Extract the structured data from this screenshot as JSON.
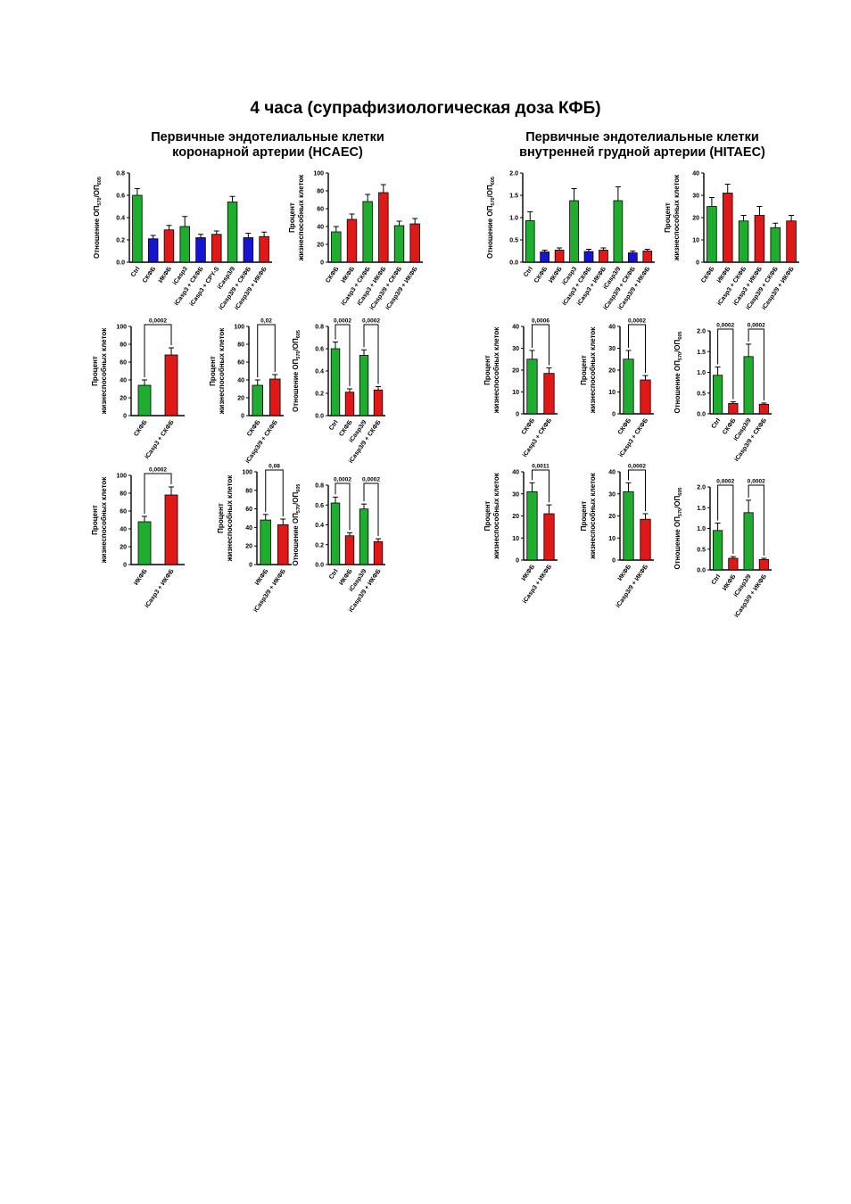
{
  "page": {
    "title": "4 часа (супрафизиологическая доза КФБ)",
    "left_panel": {
      "line1": "Первичные эндотелиальные клетки",
      "line2": "коронарной артерии (HCAEC)"
    },
    "right_panel": {
      "line1": "Первичные эндотелиальные клетки",
      "line2": "внутренней грудной артерии (HITAEC)"
    }
  },
  "colors": {
    "green": "#1fad2f",
    "blue": "#1414d2",
    "red": "#e01818"
  },
  "chart_data": [
    {
      "id": "hcaec-ratio-all",
      "type": "bar",
      "ylabel": "Отношение ОП570/ОП605",
      "ylabel_main": "Отношение ОП",
      "ylabel_sub1": "570",
      "ylabel_mid": "/ОП",
      "ylabel_sub2": "605",
      "ylim": [
        0,
        0.8
      ],
      "yticks": [
        "0.0",
        "0.2",
        "0.4",
        "0.6",
        "0.8"
      ],
      "categories": [
        "Ctrl",
        "СКФБ",
        "ИКФБ",
        "iCasp3",
        "iCasp3 + СКФБ",
        "iCasp3 + CPY-S",
        "iCasp3/9",
        "iCasp3/9 + СКФБ",
        "iCasp3/9 + ИКФБ"
      ],
      "values": [
        0.6,
        0.21,
        0.29,
        0.32,
        0.22,
        0.25,
        0.54,
        0.22,
        0.23
      ],
      "errors": [
        0.06,
        0.03,
        0.04,
        0.09,
        0.03,
        0.03,
        0.05,
        0.04,
        0.04
      ],
      "colors": [
        "green",
        "blue",
        "red",
        "green",
        "blue",
        "red",
        "green",
        "blue",
        "red"
      ],
      "brackets": []
    },
    {
      "id": "hcaec-viable-all",
      "type": "bar",
      "ylabel_line1": "Процент",
      "ylabel_line2": "жизнеспособных клеток",
      "ylim": [
        0,
        100
      ],
      "yticks": [
        "0",
        "20",
        "40",
        "60",
        "80",
        "100"
      ],
      "categories": [
        "СКФБ",
        "ИКФБ",
        "iCasp3 + СКФБ",
        "iCasp3 + ИКФБ",
        "iCasp3/9 + СКФБ",
        "iCasp3/9 + ИКФБ"
      ],
      "values": [
        34,
        48,
        68,
        78,
        41,
        43
      ],
      "errors": [
        6,
        6,
        8,
        9,
        5,
        6
      ],
      "colors": [
        "green",
        "red",
        "green",
        "red",
        "green",
        "red"
      ],
      "brackets": []
    },
    {
      "id": "hitaec-ratio-all",
      "type": "bar",
      "ylabel": "Отношение ОП570/ОП605",
      "ylabel_main": "Отношение ОП",
      "ylabel_sub1": "570",
      "ylabel_mid": "/ОП",
      "ylabel_sub2": "605",
      "ylim": [
        0,
        2.0
      ],
      "yticks": [
        "0.0",
        "0.5",
        "1.0",
        "1.5",
        "2.0"
      ],
      "categories": [
        "Ctrl",
        "СКФБ",
        "ИКФБ",
        "iCasp3",
        "iCasp3 + СКФБ",
        "iCasp3 + ИКФБ",
        "iCasp3/9",
        "iCasp3/9 + СКФБ",
        "iCasp3/9 + ИКФБ"
      ],
      "values": [
        0.93,
        0.23,
        0.27,
        1.38,
        0.24,
        0.27,
        1.38,
        0.21,
        0.25
      ],
      "errors": [
        0.2,
        0.04,
        0.05,
        0.27,
        0.05,
        0.05,
        0.31,
        0.04,
        0.04
      ],
      "colors": [
        "green",
        "blue",
        "red",
        "green",
        "blue",
        "red",
        "green",
        "blue",
        "red"
      ],
      "brackets": []
    },
    {
      "id": "hitaec-viable-all",
      "type": "bar",
      "ylabel_line1": "Процент",
      "ylabel_line2": "жизнеспособных клеток",
      "ylim": [
        0,
        40
      ],
      "yticks": [
        "0",
        "10",
        "20",
        "30",
        "40"
      ],
      "categories": [
        "СКФБ",
        "ИКФБ",
        "iCasp3 + СКФБ",
        "iCasp3 + ИКФБ",
        "iCasp3/9 + СКФБ",
        "iCasp3/9 + ИКФБ"
      ],
      "values": [
        25,
        31,
        18.5,
        21,
        15.5,
        18.5
      ],
      "errors": [
        4,
        4,
        2.5,
        4,
        2,
        2.5
      ],
      "colors": [
        "green",
        "red",
        "green",
        "red",
        "green",
        "red"
      ],
      "brackets": []
    },
    {
      "id": "hcaec-viable-sk",
      "type": "bar",
      "ylabel_line1": "Процент",
      "ylabel_line2": "жизнеспособных клеток",
      "ylim": [
        0,
        100
      ],
      "yticks": [
        "0",
        "20",
        "40",
        "60",
        "80",
        "100"
      ],
      "categories": [
        "СКФБ",
        "iCasp3 + СКФБ"
      ],
      "values": [
        34,
        68
      ],
      "errors": [
        6,
        8
      ],
      "colors": [
        "green",
        "red"
      ],
      "brackets": [
        {
          "a": 0,
          "b": 1,
          "label": "0,0002"
        }
      ]
    },
    {
      "id": "hcaec-viable-sk39",
      "type": "bar",
      "ylabel_line1": "Процент",
      "ylabel_line2": "жизнеспособных клеток",
      "ylim": [
        0,
        100
      ],
      "yticks": [
        "0",
        "20",
        "40",
        "60",
        "80",
        "100"
      ],
      "categories": [
        "СКФБ",
        "iCasp3/9 + СКФБ"
      ],
      "values": [
        34,
        41
      ],
      "errors": [
        6,
        5
      ],
      "colors": [
        "green",
        "red"
      ],
      "brackets": [
        {
          "a": 0,
          "b": 1,
          "label": "0,02"
        }
      ]
    },
    {
      "id": "hcaec-ratio-sk",
      "type": "bar",
      "ylabel": "Отношение ОП570/ОП605",
      "ylabel_main": "Отношение ОП",
      "ylabel_sub1": "570",
      "ylabel_mid": "/ОП",
      "ylabel_sub2": "605",
      "ylim": [
        0,
        0.8
      ],
      "yticks": [
        "0.0",
        "0.2",
        "0.4",
        "0.6",
        "0.8"
      ],
      "categories": [
        "Ctrl",
        "СКФБ",
        "iCasp3/9",
        "iCasp3/9 + СКФБ"
      ],
      "values": [
        0.6,
        0.21,
        0.54,
        0.23
      ],
      "errors": [
        0.06,
        0.03,
        0.05,
        0.03
      ],
      "colors": [
        "green",
        "red",
        "green",
        "red"
      ],
      "brackets": [
        {
          "a": 0,
          "b": 1,
          "label": "0,0002"
        },
        {
          "a": 2,
          "b": 3,
          "label": "0,0002"
        }
      ]
    },
    {
      "id": "hitaec-viable-sk",
      "type": "bar",
      "ylabel_line1": "Процент",
      "ylabel_line2": "жизнеспособных клеток",
      "ylim": [
        0,
        40
      ],
      "yticks": [
        "0",
        "10",
        "20",
        "30",
        "40"
      ],
      "categories": [
        "СКФБ",
        "iCasp3 + СКФБ"
      ],
      "values": [
        25,
        18.5
      ],
      "errors": [
        4,
        2.5
      ],
      "colors": [
        "green",
        "red"
      ],
      "brackets": [
        {
          "a": 0,
          "b": 1,
          "label": "0,0006"
        }
      ]
    },
    {
      "id": "hitaec-viable-sk39",
      "type": "bar",
      "ylabel_line1": "Процент",
      "ylabel_line2": "жизнеспособных клеток",
      "ylim": [
        0,
        40
      ],
      "yticks": [
        "0",
        "10",
        "20",
        "30",
        "40"
      ],
      "categories": [
        "СКФБ",
        "iCasp3 + СКФБ"
      ],
      "values": [
        25,
        15.5
      ],
      "errors": [
        4,
        2
      ],
      "colors": [
        "green",
        "red"
      ],
      "brackets": [
        {
          "a": 0,
          "b": 1,
          "label": "0,0002"
        }
      ]
    },
    {
      "id": "hitaec-ratio-sk",
      "type": "bar",
      "ylabel": "Отношение ОП570/ОП605",
      "ylabel_main": "Отношение ОП",
      "ylabel_sub1": "570",
      "ylabel_mid": "/ОП",
      "ylabel_sub2": "605",
      "ylim": [
        0,
        2.0
      ],
      "yticks": [
        "0.0",
        "0.5",
        "1.0",
        "1.5",
        "2.0"
      ],
      "categories": [
        "Ctrl",
        "СКФБ",
        "iCasp3/9",
        "iCasp3/9 + СКФБ"
      ],
      "values": [
        0.93,
        0.25,
        1.38,
        0.23
      ],
      "errors": [
        0.2,
        0.04,
        0.3,
        0.03
      ],
      "colors": [
        "green",
        "red",
        "green",
        "red"
      ],
      "brackets": [
        {
          "a": 0,
          "b": 1,
          "label": "0,0002"
        },
        {
          "a": 2,
          "b": 3,
          "label": "0,0002"
        }
      ]
    },
    {
      "id": "hcaec-viable-ik",
      "type": "bar",
      "ylabel_line1": "Процент",
      "ylabel_line2": "жизнеспособных клеток",
      "ylim": [
        0,
        100
      ],
      "yticks": [
        "0",
        "20",
        "40",
        "60",
        "80",
        "100"
      ],
      "categories": [
        "ИКФБ",
        "iCasp3 + ИКФБ"
      ],
      "values": [
        48,
        78
      ],
      "errors": [
        6,
        9
      ],
      "colors": [
        "green",
        "red"
      ],
      "brackets": [
        {
          "a": 0,
          "b": 1,
          "label": "0,0002"
        }
      ]
    },
    {
      "id": "hcaec-viable-ik39",
      "type": "bar",
      "ylabel_line1": "Процент",
      "ylabel_line2": "жизнеспособных клеток",
      "ylim": [
        0,
        100
      ],
      "yticks": [
        "0",
        "20",
        "40",
        "60",
        "80",
        "100"
      ],
      "categories": [
        "ИКФБ",
        "iCasp3/9 + ИКФБ"
      ],
      "values": [
        48,
        43
      ],
      "errors": [
        6,
        6
      ],
      "colors": [
        "green",
        "red"
      ],
      "brackets": [
        {
          "a": 0,
          "b": 1,
          "label": "0,08"
        }
      ]
    },
    {
      "id": "hcaec-ratio-ik",
      "type": "bar",
      "ylabel": "Отношение ОП570/ОП605",
      "ylabel_main": "Отношение ОП",
      "ylabel_sub1": "570",
      "ylabel_mid": "/ОП",
      "ylabel_sub2": "605",
      "ylim": [
        0,
        0.8
      ],
      "yticks": [
        "0.0",
        "0.2",
        "0.4",
        "0.6",
        "0.8"
      ],
      "categories": [
        "Ctrl",
        "ИКФБ",
        "iCasp3/9",
        "iCasp3/9 + ИКФБ"
      ],
      "values": [
        0.62,
        0.29,
        0.56,
        0.23
      ],
      "errors": [
        0.06,
        0.03,
        0.05,
        0.03
      ],
      "colors": [
        "green",
        "red",
        "green",
        "red"
      ],
      "brackets": [
        {
          "a": 0,
          "b": 1,
          "label": "0,0002"
        },
        {
          "a": 2,
          "b": 3,
          "label": "0,0002"
        }
      ]
    },
    {
      "id": "hitaec-viable-ik",
      "type": "bar",
      "ylabel_line1": "Процент",
      "ylabel_line2": "жизнеспособных клеток",
      "ylim": [
        0,
        40
      ],
      "yticks": [
        "0",
        "10",
        "20",
        "30",
        "40"
      ],
      "categories": [
        "ИКФБ",
        "iCasp3 + ИКФБ"
      ],
      "values": [
        31,
        21
      ],
      "errors": [
        4,
        4
      ],
      "colors": [
        "green",
        "red"
      ],
      "brackets": [
        {
          "a": 0,
          "b": 1,
          "label": "0,0011"
        }
      ]
    },
    {
      "id": "hitaec-viable-ik39",
      "type": "bar",
      "ylabel_line1": "Процент",
      "ylabel_line2": "жизнеспособных клеток",
      "ylim": [
        0,
        40
      ],
      "yticks": [
        "0",
        "10",
        "20",
        "30",
        "40"
      ],
      "categories": [
        "ИКФБ",
        "iCasp3/9 + ИКФБ"
      ],
      "values": [
        31,
        18.5
      ],
      "errors": [
        4,
        2.5
      ],
      "colors": [
        "green",
        "red"
      ],
      "brackets": [
        {
          "a": 0,
          "b": 1,
          "label": "0,0002"
        }
      ]
    },
    {
      "id": "hitaec-ratio-ik",
      "type": "bar",
      "ylabel": "Отношение ОП570/ОП605",
      "ylabel_main": "Отношение ОП",
      "ylabel_sub1": "570",
      "ylabel_mid": "/ОП",
      "ylabel_sub2": "605",
      "ylim": [
        0,
        2.0
      ],
      "yticks": [
        "0.0",
        "0.5",
        "1.0",
        "1.5",
        "2.0"
      ],
      "categories": [
        "Ctrl",
        "ИКФБ",
        "iCasp3/9",
        "iCasp3/9 + ИКФБ"
      ],
      "values": [
        0.95,
        0.28,
        1.38,
        0.25
      ],
      "errors": [
        0.18,
        0.04,
        0.3,
        0.03
      ],
      "colors": [
        "green",
        "red",
        "green",
        "red"
      ],
      "brackets": [
        {
          "a": 0,
          "b": 1,
          "label": "0,0002"
        },
        {
          "a": 2,
          "b": 3,
          "label": "0,0002"
        }
      ]
    }
  ]
}
